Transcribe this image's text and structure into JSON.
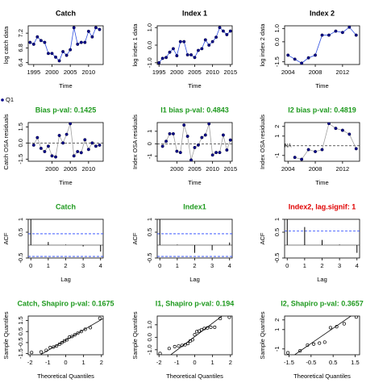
{
  "chart_data": [
    {
      "type": "line",
      "title": "Catch",
      "title_color": "#000000",
      "xlabel": "Time",
      "ylabel": "log catch data",
      "color": "#00008b",
      "x": [
        1994,
        1995,
        1996,
        1997,
        1998,
        1999,
        2000,
        2001,
        2002,
        2003,
        2004,
        2005,
        2006,
        2007,
        2008,
        2009,
        2010,
        2011,
        2012,
        2013
      ],
      "values": [
        6.95,
        6.9,
        7.1,
        7.0,
        6.95,
        6.65,
        6.65,
        6.55,
        6.45,
        6.7,
        6.6,
        6.75,
        7.35,
        6.9,
        6.95,
        6.95,
        7.25,
        7.1,
        7.35,
        7.3
      ],
      "xlim": [
        1993.5,
        2014
      ],
      "xticks": [
        1995,
        2000,
        2005,
        2010
      ],
      "ylim": [
        6.35,
        7.4
      ],
      "yticks": [
        6.4,
        6.8,
        7.2
      ]
    },
    {
      "type": "line",
      "title": "Index 1",
      "title_color": "#000000",
      "xlabel": "Time",
      "ylabel": "log index 1 data",
      "color": "#00008b",
      "x": [
        1995,
        1996,
        1997,
        1998,
        1999,
        2000,
        2001,
        2002,
        2003,
        2004,
        2005,
        2006,
        2007,
        2008,
        2009,
        2010,
        2011,
        2012,
        2013,
        2014,
        2015
      ],
      "values": [
        -1.0,
        -0.75,
        -0.7,
        -0.4,
        -0.2,
        -0.6,
        0.2,
        0.2,
        -0.55,
        -0.55,
        -0.7,
        -0.3,
        -0.2,
        0.3,
        0.0,
        0.2,
        0.45,
        1.0,
        0.8,
        0.6,
        0.8
      ],
      "xlim": [
        1994.5,
        2015.5
      ],
      "xticks": [
        1995,
        2000,
        2005,
        2010,
        2015
      ],
      "ylim": [
        -1.1,
        1.1
      ],
      "yticks": [
        {
          "value": -1,
          "label": "-1.0"
        },
        {
          "value": 0,
          "label": "0.0"
        },
        {
          "value": 1,
          "label": "1.0"
        }
      ]
    },
    {
      "type": "line",
      "title": "Index 2",
      "title_color": "#000000",
      "xlabel": "Time",
      "ylabel": "log index 2 data",
      "color": "#00008b",
      "x": [
        2004,
        2005,
        2006,
        2007,
        2008,
        2009,
        2010,
        2011,
        2012,
        2013,
        2014
      ],
      "values": [
        -1.0,
        -1.3,
        -1.6,
        -1.2,
        -1.0,
        0.5,
        0.5,
        0.8,
        0.7,
        1.1,
        0.5
      ],
      "xlim": [
        2003.5,
        2014.5
      ],
      "xticks": [
        2004,
        2008,
        2012
      ],
      "ylim": [
        -1.7,
        1.2
      ],
      "yticks": [
        -1.5,
        {
          "value": 0,
          "label": "0.0"
        },
        {
          "value": 1,
          "label": "1.0"
        }
      ]
    },
    {
      "type": "scatter",
      "title": "Bias p-val: 0.1425",
      "title_color": "#1f9a1f",
      "xlabel": "Time",
      "ylabel": "Catch OSA residuals",
      "legend": "outside-left",
      "x": [
        1995,
        1996,
        1997,
        1998,
        1999,
        2000,
        2001,
        2002,
        2003,
        2004,
        2005,
        2006,
        2007,
        2008,
        2009,
        2010,
        2011,
        2012,
        2013
      ],
      "series": [
        {
          "name": "Q1",
          "color": "#00008b",
          "values": [
            -0.2,
            0.5,
            -0.5,
            -0.8,
            -0.3,
            -1.2,
            -1.3,
            0.7,
            0.0,
            0.8,
            1.8,
            -1.2,
            -0.8,
            -0.9,
            0.3,
            -0.6,
            0.0,
            -0.3,
            -0.2
          ]
        }
      ],
      "xlim": [
        1993.5,
        2014
      ],
      "xticks": [
        2000,
        2005,
        2010
      ],
      "ylim": [
        -1.7,
        1.9
      ],
      "yticks": [
        -1.5,
        {
          "value": 0,
          "label": "0.0"
        },
        1.5
      ]
    },
    {
      "type": "scatter",
      "title": "I1 bias p-val: 0.4843",
      "title_color": "#1f9a1f",
      "xlabel": "Time",
      "ylabel": "Index OSA residuals",
      "color": "#00008b",
      "x": [
        1996,
        1997,
        1998,
        1999,
        2000,
        2001,
        2002,
        2003,
        2004,
        2005,
        2006,
        2007,
        2008,
        2009,
        2010,
        2011,
        2012,
        2013,
        2014,
        2015
      ],
      "values": [
        -0.2,
        0.2,
        0.8,
        0.8,
        -0.6,
        -0.7,
        1.5,
        0.6,
        -1.3,
        -0.3,
        -0.1,
        0.5,
        0.7,
        1.6,
        -0.9,
        -0.7,
        -0.7,
        0.7,
        -0.5,
        0.3
      ],
      "xlim": [
        1994.5,
        2015.5
      ],
      "xticks": [
        2000,
        2005,
        2010,
        2015
      ],
      "ylim": [
        -1.4,
        1.7
      ],
      "yticks": [
        -1,
        0,
        1
      ]
    },
    {
      "type": "scatter",
      "title": "I2 bias p-val: 0.4819",
      "title_color": "#1f9a1f",
      "xlabel": "Time",
      "ylabel": "Index OSA residuals",
      "color": "#00008b",
      "annotation": "NA",
      "x": [
        2004,
        2005,
        2006,
        2007,
        2008,
        2009,
        2010,
        2011,
        2012,
        2013,
        2014
      ],
      "values": [
        null,
        -1.2,
        -1.4,
        -0.4,
        -0.6,
        -0.4,
        2.3,
        1.8,
        1.6,
        1.2,
        -0.3
      ],
      "xlim": [
        2003.5,
        2014.5
      ],
      "xticks": [
        2004,
        2008,
        2012
      ],
      "ylim": [
        -1.6,
        2.4
      ],
      "yticks": [
        -1,
        1,
        2
      ]
    },
    {
      "type": "acf",
      "title": "Catch",
      "title_color": "#1f9a1f",
      "xlabel": "Lag",
      "ylabel": "ACF",
      "ci": 0.44,
      "x": [
        0,
        1,
        2,
        3,
        4
      ],
      "values": [
        1,
        0.12,
        0.02,
        -0.05,
        -0.25
      ],
      "xlim": [
        -0.15,
        4.15
      ],
      "xticks": [
        0,
        1,
        2,
        3,
        4
      ],
      "ylim": [
        -0.5,
        1
      ],
      "yticks": [
        -0.5,
        0.5,
        1
      ]
    },
    {
      "type": "acf",
      "title": "Index1",
      "title_color": "#1f9a1f",
      "xlabel": "Lag",
      "ylabel": "ACF",
      "ci": 0.44,
      "x": [
        0,
        1,
        2,
        3,
        4
      ],
      "values": [
        1,
        0.02,
        -0.3,
        -0.2,
        0.1
      ],
      "xlim": [
        -0.15,
        4.15
      ],
      "xticks": [
        0,
        1,
        2,
        3,
        4
      ],
      "ylim": [
        -0.5,
        1
      ],
      "yticks": [
        -0.5,
        0.5,
        1
      ]
    },
    {
      "type": "acf",
      "title": "Index2, lag.signif: 1",
      "title_color": "#e00000",
      "xlabel": "Lag",
      "ylabel": "ACF",
      "ci": 0.55,
      "x": [
        0,
        1,
        2,
        3,
        4
      ],
      "values": [
        1,
        0.7,
        0.2,
        0.02,
        -0.3
      ],
      "xlim": [
        -0.15,
        4.15
      ],
      "xticks": [
        0,
        1,
        2,
        3,
        4
      ],
      "ylim": [
        -0.5,
        1
      ],
      "yticks": [
        -0.5,
        0.5,
        1
      ]
    },
    {
      "type": "qq",
      "title": "Catch, Shapiro p-val: 0.1675",
      "title_color": "#1f9a1f",
      "xlabel": "Theoretical Quantiles",
      "ylabel": "Sample Quantiles",
      "color": "#000000",
      "x": [
        -1.91,
        -1.38,
        -1.09,
        -0.87,
        -0.68,
        -0.51,
        -0.35,
        -0.21,
        -0.07,
        0.07,
        0.21,
        0.35,
        0.51,
        0.68,
        0.87,
        1.09,
        1.38,
        1.91
      ],
      "values": [
        -1.4,
        -1.35,
        -1.2,
        -0.95,
        -0.9,
        -0.8,
        -0.65,
        -0.5,
        -0.35,
        -0.25,
        0.0,
        0.05,
        0.2,
        0.35,
        0.5,
        0.7,
        0.85,
        1.7
      ],
      "xlim": [
        -2.1,
        2.1
      ],
      "xticks": [
        -2,
        -1,
        0,
        1,
        2
      ],
      "ylim": [
        -1.6,
        1.9
      ],
      "yticks": [
        -1.5,
        -0.5,
        0.5,
        1.5
      ]
    },
    {
      "type": "qq",
      "title": "I1, Shapiro p-val: 0.194",
      "title_color": "#1f9a1f",
      "xlabel": "Theoretical Quantiles",
      "ylabel": "Sample Quantiles",
      "color": "#000000",
      "x": [
        -1.94,
        -1.43,
        -1.12,
        -0.9,
        -0.71,
        -0.54,
        -0.38,
        -0.25,
        -0.12,
        0,
        0.12,
        0.25,
        0.38,
        0.54,
        0.71,
        0.9,
        1.12,
        1.43,
        1.94
      ],
      "values": [
        -1.3,
        -0.9,
        -0.75,
        -0.7,
        -0.65,
        -0.6,
        -0.5,
        -0.3,
        -0.2,
        0.2,
        0.45,
        0.5,
        0.6,
        0.7,
        0.75,
        0.8,
        0.8,
        1.5,
        1.6
      ],
      "xlim": [
        -2.1,
        2.1
      ],
      "xticks": [
        -2,
        -1,
        0,
        1,
        2
      ],
      "ylim": [
        -1.4,
        1.7
      ],
      "yticks": [
        {
          "value": -1,
          "label": "-1.0"
        },
        {
          "value": 0,
          "label": "0.0"
        },
        {
          "value": 1,
          "label": "1.0"
        }
      ]
    },
    {
      "type": "qq",
      "title": "I2, Shapiro p-val: 0.3657",
      "title_color": "#1f9a1f",
      "xlabel": "Theoretical Quantiles",
      "ylabel": "Sample Quantiles",
      "color": "#000000",
      "x": [
        -1.55,
        -1.0,
        -0.66,
        -0.38,
        -0.12,
        0.12,
        0.38,
        0.66,
        1.0,
        1.55
      ],
      "values": [
        -1.4,
        -1.2,
        -0.6,
        -0.5,
        -0.4,
        -0.3,
        1.2,
        1.3,
        1.6,
        2.3
      ],
      "xlim": [
        -1.7,
        1.7
      ],
      "xticks": [
        -1.5,
        -0.5,
        0.5,
        1.5
      ],
      "ylim": [
        -1.6,
        2.4
      ],
      "yticks": [
        -1,
        1,
        2
      ]
    }
  ]
}
